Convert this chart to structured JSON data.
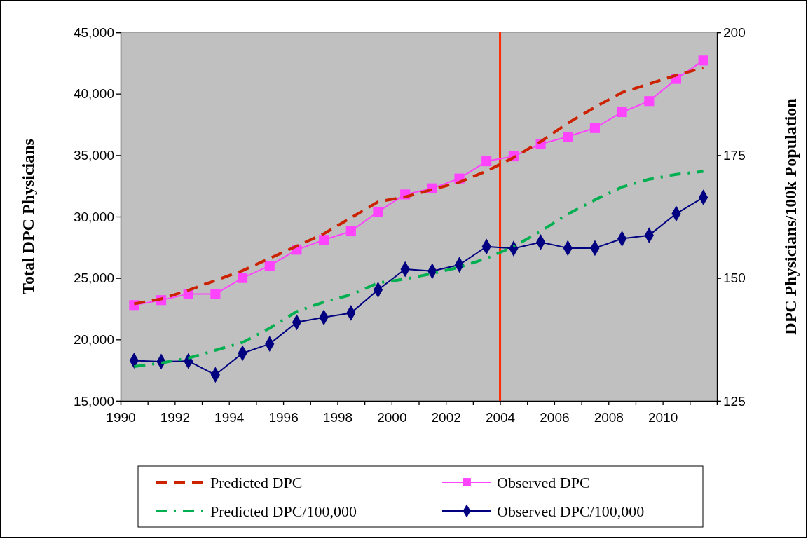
{
  "chart_data": {
    "type": "line",
    "ylabel": "Total DPC Physicians",
    "y2label": "DPC Physicians/100k Population",
    "x": [
      1990.5,
      1991.5,
      1992.5,
      1993.5,
      1994.5,
      1995.5,
      1996.5,
      1997.5,
      1998.5,
      1999.5,
      2000.5,
      2001.5,
      2002.5,
      2003.5,
      2004.5,
      2005.5,
      2006.5,
      2007.5,
      2008.5,
      2009.5,
      2010.5,
      2011.5
    ],
    "xlim": [
      1990,
      2012
    ],
    "xticks": [
      1990,
      {
        "value": 1991,
        "label": null
      },
      1992,
      {
        "value": 1993,
        "label": null
      },
      1994,
      {
        "value": 1995,
        "label": null
      },
      1996,
      {
        "value": 1997,
        "label": null
      },
      1998,
      {
        "value": 1999,
        "label": null
      },
      2000,
      {
        "value": 2001,
        "label": null
      },
      2002,
      {
        "value": 2003,
        "label": null
      },
      2004,
      {
        "value": 2005,
        "label": null
      },
      2006,
      {
        "value": 2007,
        "label": null
      },
      2008,
      {
        "value": 2009,
        "label": null
      },
      2010,
      {
        "value": 2011,
        "label": null
      },
      {
        "value": 2012,
        "label": null
      }
    ],
    "ylim": [
      15000,
      45000
    ],
    "yticks": [
      {
        "value": 15000,
        "label": "15,000"
      },
      {
        "value": 20000,
        "label": "20,000"
      },
      {
        "value": 25000,
        "label": "25,000"
      },
      {
        "value": 30000,
        "label": "30,000"
      },
      {
        "value": 35000,
        "label": "35,000"
      },
      {
        "value": 40000,
        "label": "40,000"
      },
      {
        "value": 45000,
        "label": "45,000"
      }
    ],
    "y2lim": [
      125,
      200
    ],
    "y2ticks": [
      125,
      150,
      175,
      200
    ],
    "grid": false,
    "legend": "bottom",
    "ref_lines": [
      {
        "axis": "x",
        "value": 2004,
        "color": "#ff2a00"
      }
    ],
    "series": [
      {
        "name": "Predicted DPC",
        "color": "#cc2200",
        "line_style": "dashed",
        "marker": "none",
        "values": [
          22900,
          23300,
          24000,
          24800,
          25600,
          26600,
          27600,
          28600,
          29900,
          31200,
          31600,
          32200,
          32800,
          33700,
          34800,
          36100,
          37600,
          38900,
          40100,
          40800,
          41500,
          42100
        ]
      },
      {
        "name": "Observed DPC",
        "color": "#ff44ff",
        "line_style": "solid",
        "marker": "square",
        "values": [
          22800,
          23200,
          23700,
          23700,
          25000,
          26000,
          27300,
          28100,
          28800,
          30400,
          31800,
          32300,
          33100,
          34500,
          34900,
          35900,
          36500,
          37200,
          38500,
          39400,
          41200,
          42700
        ]
      },
      {
        "name": "Predicted DPC/100,000",
        "color": "#00b050",
        "line_style": "dashdot",
        "marker": "none",
        "axis": "y2",
        "values": [
          132.0,
          132.7,
          133.7,
          135.3,
          136.9,
          139.8,
          143.2,
          145.1,
          146.6,
          149.0,
          149.8,
          150.9,
          152.2,
          154.0,
          156.4,
          159.5,
          163.0,
          165.9,
          168.5,
          170.1,
          171.1,
          171.7
        ]
      },
      {
        "name": "Observed DPC/100,000",
        "color": "#000080",
        "line_style": "solid",
        "marker": "diamond",
        "axis": "y2",
        "values": [
          133.2,
          133.0,
          133.1,
          130.3,
          134.7,
          136.6,
          141.0,
          142.0,
          142.9,
          147.6,
          151.8,
          151.4,
          152.7,
          156.4,
          156.0,
          157.3,
          156.1,
          156.1,
          158.0,
          158.7,
          163.1,
          166.4
        ]
      }
    ]
  }
}
